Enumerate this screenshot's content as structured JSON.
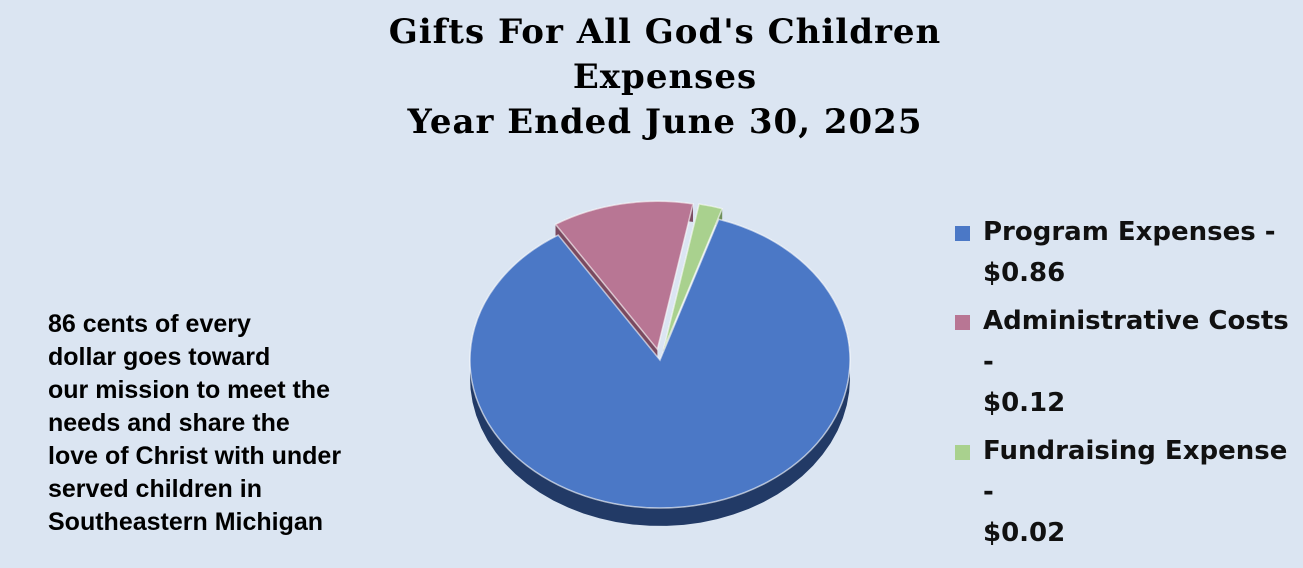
{
  "chart_data": {
    "type": "pie",
    "title_lines": [
      "Gifts For All God's Children",
      "Expenses",
      "Year Ended June 30, 2025"
    ],
    "slices": [
      {
        "label": "Program Expenses - $0.86",
        "value": 0.86,
        "color": "#4b78c6",
        "side_color": "#223a66"
      },
      {
        "label": "Administrative Costs - $0.12",
        "value": 0.12,
        "color": "#b87694",
        "side_color": "#7a4a60"
      },
      {
        "label": "Fundraising Expense - $0.02",
        "value": 0.02,
        "color": "#a9d18e",
        "side_color": "#6f8f5a"
      }
    ],
    "legend_position": "right"
  },
  "legend_lines": [
    "Program Expenses -\n$0.86",
    "Administrative Costs -\n$0.12",
    "Fundraising Expense -\n$0.02"
  ],
  "caption_lines": [
    "86 cents of every",
    "dollar goes toward",
    "our mission to meet the",
    "needs and share the",
    "love of Christ with under",
    "served children in",
    "Southeastern Michigan"
  ],
  "colors": {
    "background": "#dbe5f2"
  }
}
